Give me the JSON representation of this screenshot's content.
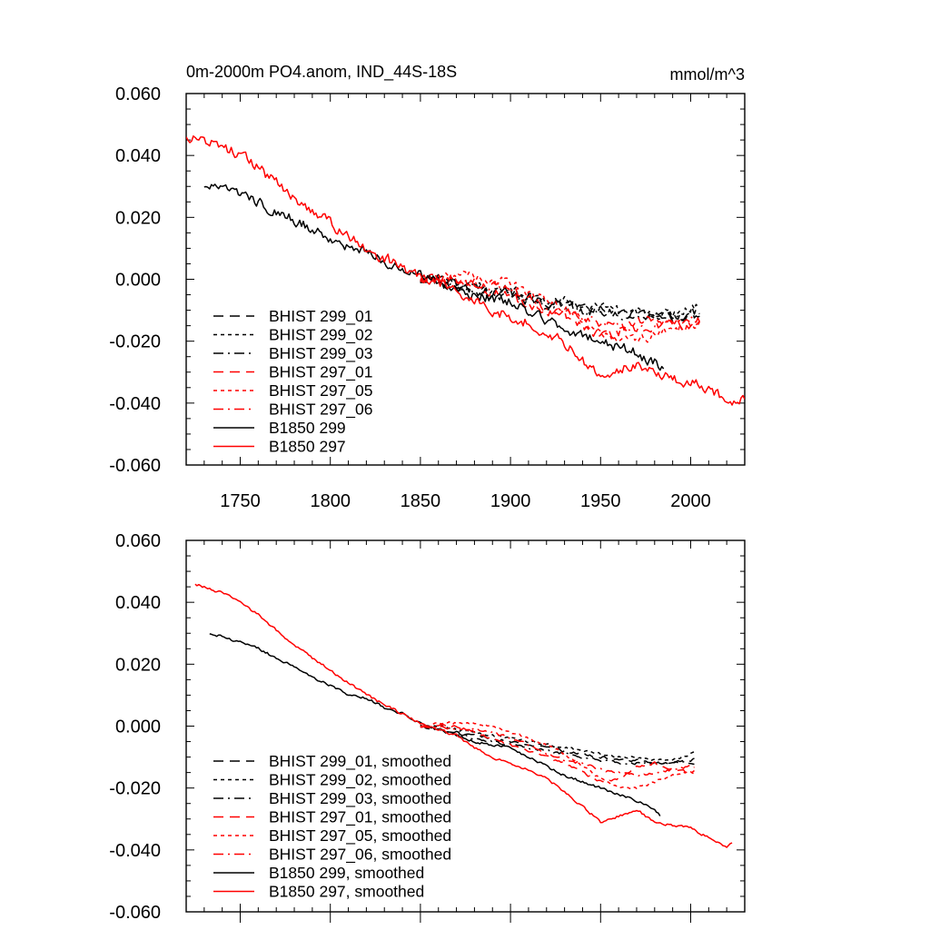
{
  "title": "0m-2000m PO4.anom, IND_44S-18S",
  "units": "mmol/m^3",
  "colors": {
    "black": "#000000",
    "red": "#ff0000"
  },
  "chart_data": [
    {
      "type": "line",
      "panel": "top",
      "title": "0m-2000m PO4.anom, IND_44S-18S",
      "units_label": "mmol/m^3",
      "xlim": [
        1720,
        2030
      ],
      "ylim": [
        -0.06,
        0.06
      ],
      "xticks": [
        1750,
        1800,
        1850,
        1900,
        1950,
        2000
      ],
      "xtick_labels": [
        "1750",
        "1800",
        "1850",
        "1900",
        "1950",
        "2000"
      ],
      "yticks": [
        0.06,
        0.04,
        0.02,
        0.0,
        -0.02,
        -0.04,
        -0.06
      ],
      "ytick_labels": [
        "0.060",
        "0.040",
        "0.020",
        "0.000",
        "-0.020",
        "-0.040",
        "-0.060"
      ],
      "legend_position": "lower-left",
      "series": [
        {
          "name": "BHIST 299_01",
          "color": "#000000",
          "dash": "long-dash",
          "noise": 0.0025,
          "x": [
            1850,
            1860,
            1870,
            1880,
            1890,
            1900,
            1910,
            1920,
            1930,
            1940,
            1950,
            1960,
            1970,
            1980,
            1990,
            2000,
            2005
          ],
          "y": [
            0.0,
            -0.001,
            -0.002,
            -0.003,
            -0.004,
            -0.005,
            -0.006,
            -0.007,
            -0.008,
            -0.009,
            -0.01,
            -0.011,
            -0.011,
            -0.012,
            -0.012,
            -0.011,
            -0.01
          ]
        },
        {
          "name": "BHIST 299_02",
          "color": "#000000",
          "dash": "short-dash",
          "noise": 0.0025,
          "x": [
            1850,
            1860,
            1870,
            1880,
            1890,
            1900,
            1910,
            1920,
            1930,
            1940,
            1950,
            1960,
            1970,
            1980,
            1990,
            2000,
            2005
          ],
          "y": [
            0.0,
            0.0,
            -0.001,
            -0.002,
            -0.003,
            -0.004,
            -0.005,
            -0.006,
            -0.007,
            -0.008,
            -0.009,
            -0.01,
            -0.01,
            -0.011,
            -0.011,
            -0.009,
            -0.008
          ]
        },
        {
          "name": "BHIST 299_03",
          "color": "#000000",
          "dash": "dash-dot",
          "noise": 0.0025,
          "x": [
            1850,
            1860,
            1870,
            1880,
            1890,
            1900,
            1910,
            1920,
            1930,
            1940,
            1950,
            1960,
            1970,
            1980,
            1990,
            2000,
            2005
          ],
          "y": [
            0.0,
            -0.001,
            -0.002,
            -0.004,
            -0.005,
            -0.006,
            -0.007,
            -0.008,
            -0.009,
            -0.01,
            -0.011,
            -0.012,
            -0.012,
            -0.012,
            -0.012,
            -0.012,
            -0.012
          ]
        },
        {
          "name": "BHIST 297_01",
          "color": "#ff0000",
          "dash": "long-dash",
          "noise": 0.0025,
          "x": [
            1850,
            1860,
            1870,
            1880,
            1890,
            1900,
            1910,
            1920,
            1930,
            1940,
            1950,
            1960,
            1970,
            1980,
            1990,
            2000,
            2005
          ],
          "y": [
            0.0,
            0.0,
            0.0,
            -0.002,
            -0.004,
            -0.006,
            -0.008,
            -0.01,
            -0.012,
            -0.015,
            -0.018,
            -0.017,
            -0.013,
            -0.012,
            -0.014,
            -0.015,
            -0.014
          ]
        },
        {
          "name": "BHIST 297_05",
          "color": "#ff0000",
          "dash": "short-dash",
          "noise": 0.0025,
          "x": [
            1850,
            1860,
            1870,
            1880,
            1890,
            1900,
            1910,
            1920,
            1930,
            1940,
            1950,
            1960,
            1970,
            1980,
            1990,
            2000,
            2005
          ],
          "y": [
            0.0,
            0.001,
            0.001,
            0.001,
            0.0,
            -0.002,
            -0.004,
            -0.006,
            -0.009,
            -0.013,
            -0.017,
            -0.02,
            -0.02,
            -0.018,
            -0.016,
            -0.015,
            -0.015
          ]
        },
        {
          "name": "BHIST 297_06",
          "color": "#ff0000",
          "dash": "dash-dot",
          "noise": 0.0025,
          "x": [
            1850,
            1860,
            1870,
            1880,
            1890,
            1900,
            1910,
            1920,
            1930,
            1940,
            1950,
            1960,
            1970,
            1980,
            1990,
            2000,
            2005
          ],
          "y": [
            0.0,
            0.0,
            -0.001,
            -0.001,
            -0.002,
            -0.004,
            -0.006,
            -0.009,
            -0.011,
            -0.012,
            -0.014,
            -0.015,
            -0.016,
            -0.015,
            -0.014,
            -0.013,
            -0.013
          ]
        },
        {
          "name": "B1850 299",
          "color": "#000000",
          "dash": "solid",
          "noise": 0.0028,
          "x": [
            1730,
            1740,
            1750,
            1760,
            1770,
            1780,
            1790,
            1800,
            1810,
            1820,
            1830,
            1840,
            1850,
            1860,
            1870,
            1880,
            1890,
            1900,
            1910,
            1920,
            1930,
            1940,
            1950,
            1960,
            1970,
            1980,
            1985
          ],
          "y": [
            0.03,
            0.029,
            0.027,
            0.025,
            0.022,
            0.019,
            0.016,
            0.013,
            0.011,
            0.009,
            0.006,
            0.004,
            0.001,
            -0.001,
            -0.003,
            -0.005,
            -0.006,
            -0.007,
            -0.01,
            -0.013,
            -0.016,
            -0.018,
            -0.02,
            -0.022,
            -0.024,
            -0.027,
            -0.03
          ]
        },
        {
          "name": "B1850 297",
          "color": "#ff0000",
          "dash": "solid",
          "noise": 0.0028,
          "x": [
            1720,
            1730,
            1740,
            1750,
            1760,
            1770,
            1780,
            1790,
            1800,
            1810,
            1820,
            1830,
            1840,
            1850,
            1860,
            1870,
            1880,
            1890,
            1900,
            1910,
            1920,
            1930,
            1940,
            1950,
            1960,
            1970,
            1980,
            1990,
            2000,
            2010,
            2020,
            2030
          ],
          "y": [
            0.046,
            0.045,
            0.043,
            0.04,
            0.036,
            0.031,
            0.026,
            0.022,
            0.018,
            0.014,
            0.01,
            0.007,
            0.004,
            0.001,
            -0.001,
            -0.003,
            -0.007,
            -0.01,
            -0.012,
            -0.014,
            -0.017,
            -0.021,
            -0.026,
            -0.031,
            -0.029,
            -0.027,
            -0.031,
            -0.032,
            -0.033,
            -0.036,
            -0.039,
            -0.039
          ]
        }
      ]
    },
    {
      "type": "line",
      "panel": "bottom",
      "xlim": [
        1720,
        2030
      ],
      "ylim": [
        -0.06,
        0.06
      ],
      "xticks": [
        1750,
        1800,
        1850,
        1900,
        1950,
        2000
      ],
      "yticks": [
        0.06,
        0.04,
        0.02,
        0.0,
        -0.02,
        -0.04,
        -0.06
      ],
      "ytick_labels": [
        "0.060",
        "0.040",
        "0.020",
        "0.000",
        "-0.020",
        "-0.040",
        "-0.060"
      ],
      "legend_position": "lower-left",
      "series": [
        {
          "name": "BHIST 299_01, smoothed",
          "color": "#000000",
          "dash": "long-dash",
          "noise": 0.0007,
          "x": [
            1850,
            1860,
            1870,
            1880,
            1890,
            1900,
            1910,
            1920,
            1930,
            1940,
            1950,
            1960,
            1970,
            1980,
            1990,
            2000,
            2002
          ],
          "y": [
            0.0,
            -0.001,
            -0.002,
            -0.003,
            -0.004,
            -0.005,
            -0.006,
            -0.007,
            -0.008,
            -0.009,
            -0.01,
            -0.011,
            -0.011,
            -0.012,
            -0.012,
            -0.011,
            -0.01
          ]
        },
        {
          "name": "BHIST 299_02, smoothed",
          "color": "#000000",
          "dash": "short-dash",
          "noise": 0.0007,
          "x": [
            1850,
            1860,
            1870,
            1880,
            1890,
            1900,
            1910,
            1920,
            1930,
            1940,
            1950,
            1960,
            1970,
            1980,
            1990,
            2000,
            2002
          ],
          "y": [
            0.0,
            0.0,
            -0.001,
            -0.002,
            -0.003,
            -0.004,
            -0.005,
            -0.006,
            -0.007,
            -0.008,
            -0.009,
            -0.01,
            -0.01,
            -0.011,
            -0.011,
            -0.009,
            -0.008
          ]
        },
        {
          "name": "BHIST 299_03, smoothed",
          "color": "#000000",
          "dash": "dash-dot",
          "noise": 0.0007,
          "x": [
            1850,
            1860,
            1870,
            1880,
            1890,
            1900,
            1910,
            1920,
            1930,
            1940,
            1950,
            1960,
            1970,
            1980,
            1990,
            2000,
            2002
          ],
          "y": [
            0.0,
            -0.001,
            -0.002,
            -0.004,
            -0.005,
            -0.006,
            -0.007,
            -0.008,
            -0.009,
            -0.01,
            -0.011,
            -0.012,
            -0.012,
            -0.012,
            -0.012,
            -0.012,
            -0.012
          ]
        },
        {
          "name": "BHIST 297_01, smoothed",
          "color": "#ff0000",
          "dash": "long-dash",
          "noise": 0.0007,
          "x": [
            1850,
            1860,
            1870,
            1880,
            1890,
            1900,
            1910,
            1920,
            1930,
            1940,
            1950,
            1960,
            1970,
            1980,
            1990,
            2000,
            2002
          ],
          "y": [
            0.0,
            0.0,
            0.0,
            -0.002,
            -0.004,
            -0.006,
            -0.008,
            -0.01,
            -0.012,
            -0.015,
            -0.018,
            -0.017,
            -0.013,
            -0.012,
            -0.014,
            -0.015,
            -0.014
          ]
        },
        {
          "name": "BHIST 297_05, smoothed",
          "color": "#ff0000",
          "dash": "short-dash",
          "noise": 0.0007,
          "x": [
            1850,
            1860,
            1870,
            1880,
            1890,
            1900,
            1910,
            1920,
            1930,
            1940,
            1950,
            1960,
            1970,
            1980,
            1990,
            2000,
            2002
          ],
          "y": [
            0.0,
            0.001,
            0.001,
            0.001,
            0.0,
            -0.002,
            -0.004,
            -0.006,
            -0.009,
            -0.013,
            -0.017,
            -0.02,
            -0.02,
            -0.018,
            -0.016,
            -0.015,
            -0.015
          ]
        },
        {
          "name": "BHIST 297_06, smoothed",
          "color": "#ff0000",
          "dash": "dash-dot",
          "noise": 0.0007,
          "x": [
            1850,
            1860,
            1870,
            1880,
            1890,
            1900,
            1910,
            1920,
            1930,
            1940,
            1950,
            1960,
            1970,
            1980,
            1990,
            2000,
            2002
          ],
          "y": [
            0.0,
            0.0,
            -0.001,
            -0.001,
            -0.002,
            -0.004,
            -0.006,
            -0.009,
            -0.011,
            -0.012,
            -0.014,
            -0.015,
            -0.016,
            -0.015,
            -0.014,
            -0.013,
            -0.013
          ]
        },
        {
          "name": "B1850 299, smoothed",
          "color": "#000000",
          "dash": "solid",
          "noise": 0.0007,
          "x": [
            1733,
            1740,
            1750,
            1760,
            1770,
            1780,
            1790,
            1800,
            1810,
            1820,
            1830,
            1840,
            1850,
            1860,
            1870,
            1880,
            1890,
            1900,
            1910,
            1920,
            1930,
            1940,
            1950,
            1960,
            1970,
            1980,
            1983
          ],
          "y": [
            0.03,
            0.029,
            0.027,
            0.025,
            0.022,
            0.019,
            0.016,
            0.013,
            0.01,
            0.009,
            0.006,
            0.004,
            0.001,
            -0.001,
            -0.003,
            -0.005,
            -0.006,
            -0.007,
            -0.01,
            -0.013,
            -0.016,
            -0.018,
            -0.02,
            -0.022,
            -0.024,
            -0.027,
            -0.029
          ]
        },
        {
          "name": "B1850 297, smoothed",
          "color": "#ff0000",
          "dash": "solid",
          "noise": 0.0007,
          "x": [
            1725,
            1730,
            1740,
            1750,
            1760,
            1770,
            1780,
            1790,
            1800,
            1810,
            1820,
            1830,
            1840,
            1850,
            1860,
            1870,
            1880,
            1890,
            1900,
            1910,
            1920,
            1930,
            1940,
            1950,
            1960,
            1970,
            1980,
            1990,
            2000,
            2010,
            2020,
            2023
          ],
          "y": [
            0.046,
            0.045,
            0.043,
            0.04,
            0.036,
            0.031,
            0.026,
            0.022,
            0.018,
            0.014,
            0.01,
            0.007,
            0.004,
            0.001,
            -0.001,
            -0.003,
            -0.007,
            -0.01,
            -0.012,
            -0.014,
            -0.017,
            -0.021,
            -0.026,
            -0.031,
            -0.029,
            -0.027,
            -0.031,
            -0.032,
            -0.033,
            -0.036,
            -0.039,
            -0.038
          ]
        }
      ]
    }
  ]
}
